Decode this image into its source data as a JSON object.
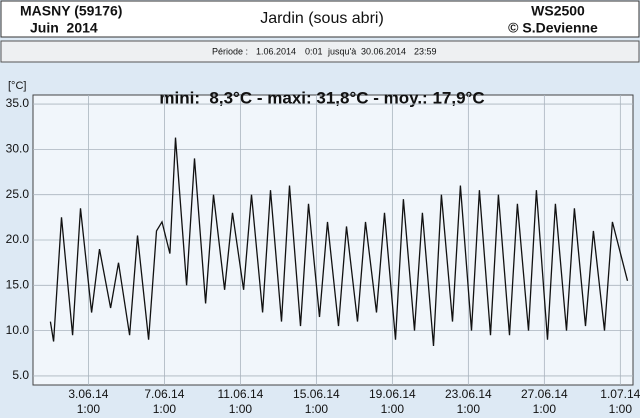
{
  "header": {
    "station": "MASNY (59176)",
    "month": "Juin  2014",
    "title": "Jardin (sous abri)",
    "device": "WS2500",
    "copyright": "© S.Devienne"
  },
  "period": {
    "label": "Période :",
    "start_date": "1.06.2014",
    "start_time": "0:01",
    "until": "jusqu'à",
    "end_date": "30.06.2014",
    "end_time": "23:59"
  },
  "chart_data": {
    "type": "line",
    "y_label": "[°C]",
    "annotation": "mini:  8,3°C - maxi: 31,8°C - moy.: 17,9°C",
    "color": "#111111",
    "grid": true,
    "x": [
      "1.06.14 1:00",
      "1.06.14 5:00",
      "1.06.14 15:00",
      "2.06.14 5:00",
      "2.06.14 15:00",
      "3.06.14 5:00",
      "3.06.14 15:00",
      "4.06.14 5:00",
      "4.06.14 15:00",
      "5.06.14 5:00",
      "5.06.14 15:00",
      "6.06.14 5:00",
      "6.06.14 15:00",
      "6.06.14 22:00",
      "7.06.14 8:00",
      "7.06.14 15:00",
      "8.06.14 5:00",
      "8.06.14 15:00",
      "9.06.14 5:00",
      "9.06.14 15:00",
      "10.06.14 5:00",
      "10.06.14 15:00",
      "11.06.14 5:00",
      "11.06.14 15:00",
      "12.06.14 5:00",
      "12.06.14 15:00",
      "13.06.14 5:00",
      "13.06.14 15:00",
      "14.06.14 5:00",
      "14.06.14 15:00",
      "15.06.14 5:00",
      "15.06.14 15:00",
      "16.06.14 5:00",
      "16.06.14 15:00",
      "17.06.14 5:00",
      "17.06.14 15:00",
      "18.06.14 5:00",
      "18.06.14 15:00",
      "19.06.14 5:00",
      "19.06.14 15:00",
      "20.06.14 5:00",
      "20.06.14 15:00",
      "21.06.14 5:00",
      "21.06.14 15:00",
      "22.06.14 5:00",
      "22.06.14 15:00",
      "23.06.14 5:00",
      "23.06.14 15:00",
      "24.06.14 5:00",
      "24.06.14 15:00",
      "25.06.14 5:00",
      "25.06.14 15:00",
      "26.06.14 5:00",
      "26.06.14 15:00",
      "27.06.14 5:00",
      "27.06.14 15:00",
      "28.06.14 5:00",
      "28.06.14 15:00",
      "29.06.14 5:00",
      "29.06.14 15:00",
      "30.06.14 5:00",
      "30.06.14 15:00",
      "1.07.14 10:00"
    ],
    "values": [
      11,
      8.8,
      22.5,
      9.5,
      23.5,
      12,
      19,
      12.5,
      17.5,
      9.5,
      20.5,
      9,
      21,
      22,
      18.5,
      31.3,
      15,
      29,
      13,
      25,
      14.5,
      23,
      14.5,
      25,
      12,
      25.5,
      11,
      26,
      10.5,
      24,
      11.5,
      22,
      10.5,
      21.5,
      11,
      22,
      12,
      23,
      9,
      24.5,
      10,
      23,
      8.3,
      25,
      11,
      26,
      10,
      25.5,
      9.5,
      25,
      9.5,
      24,
      10,
      25.5,
      9,
      24,
      10,
      23.5,
      10.5,
      21,
      10,
      22,
      15.5
    ],
    "xlim": [
      "31.05.14 3:00",
      "1.07.14 17:00"
    ],
    "xticks": [
      {
        "value": "3.06.14 1:00",
        "label": [
          "3.06.14",
          "1:00"
        ]
      },
      {
        "value": "7.06.14 1:00",
        "label": [
          "7.06.14",
          "1:00"
        ]
      },
      {
        "value": "11.06.14 1:00",
        "label": [
          "11.06.14",
          "1:00"
        ]
      },
      {
        "value": "15.06.14 1:00",
        "label": [
          "15.06.14",
          "1:00"
        ]
      },
      {
        "value": "19.06.14 1:00",
        "label": [
          "19.06.14",
          "1:00"
        ]
      },
      {
        "value": "23.06.14 1:00",
        "label": [
          "23.06.14",
          "1:00"
        ]
      },
      {
        "value": "27.06.14 1:00",
        "label": [
          "27.06.14",
          "1:00"
        ]
      },
      {
        "value": "1.07.14 1:00",
        "label": [
          "1.07.14",
          "1:00"
        ]
      }
    ],
    "ylim": [
      4,
      36
    ],
    "yticks": [
      {
        "value": 5,
        "label": "5.0"
      },
      {
        "value": 10,
        "label": "10.0"
      },
      {
        "value": 15,
        "label": "15.0"
      },
      {
        "value": 20,
        "label": "20.0"
      },
      {
        "value": 25,
        "label": "25.0"
      },
      {
        "value": 30,
        "label": "30.0"
      },
      {
        "value": 35,
        "label": "35.0"
      }
    ]
  }
}
